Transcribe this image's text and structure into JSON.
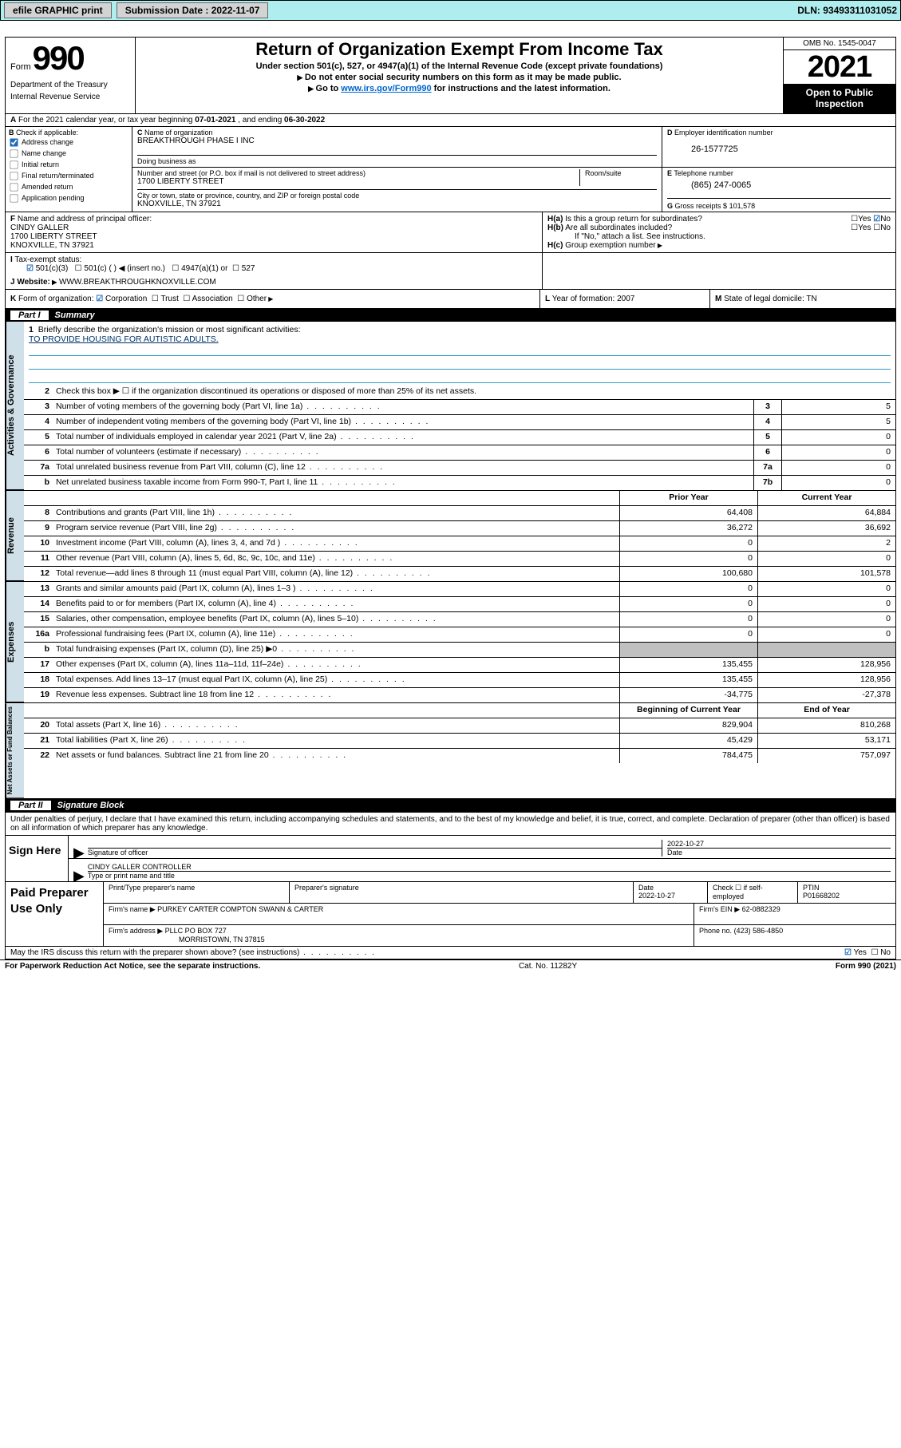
{
  "top": {
    "efile_label": "efile GRAPHIC print",
    "submission_label": "Submission Date : 2022-11-07",
    "dln_label": "DLN: 93493311031052"
  },
  "header": {
    "form_label": "Form",
    "form_number": "990",
    "dept": "Department of the Treasury",
    "irs": "Internal Revenue Service",
    "title": "Return of Organization Exempt From Income Tax",
    "subtitle": "Under section 501(c), 527, or 4947(a)(1) of the Internal Revenue Code (except private foundations)",
    "instr1": "Do not enter social security numbers on this form as it may be made public.",
    "instr2_pre": "Go to ",
    "instr2_link": "www.irs.gov/Form990",
    "instr2_post": " for instructions and the latest information.",
    "omb": "OMB No. 1545-0047",
    "year": "2021",
    "inspection": "Open to Public Inspection"
  },
  "row_a": {
    "label_a": "A",
    "text": "For the 2021 calendar year, or tax year beginning ",
    "begin": "07-01-2021",
    "mid": " , and ending ",
    "end": "06-30-2022"
  },
  "col_b": {
    "label": "B",
    "title": "Check if applicable:",
    "addr_change": "Address change",
    "name_change": "Name change",
    "initial": "Initial return",
    "final": "Final return/terminated",
    "amended": "Amended return",
    "app_pending": "Application pending"
  },
  "col_c": {
    "label": "C",
    "name_label": "Name of organization",
    "name": "BREAKTHROUGH PHASE I INC",
    "dba_label": "Doing business as",
    "dba": "",
    "street_label": "Number and street (or P.O. box if mail is not delivered to street address)",
    "room_label": "Room/suite",
    "street": "1700 LIBERTY STREET",
    "city_label": "City or town, state or province, country, and ZIP or foreign postal code",
    "city": "KNOXVILLE, TN  37921"
  },
  "col_d": {
    "label": "D",
    "title": "Employer identification number",
    "ein": "26-1577725"
  },
  "col_e": {
    "label": "E",
    "title": "Telephone number",
    "phone": "(865) 247-0065"
  },
  "col_g": {
    "label": "G",
    "title": "Gross receipts $",
    "value": "101,578"
  },
  "row_f": {
    "label": "F",
    "title": "Name and address of principal officer:",
    "name": "CINDY GALLER",
    "street": "1700 LIBERTY STREET",
    "city": "KNOXVILLE, TN  37921"
  },
  "row_h": {
    "ha_label": "H(a)",
    "ha_text": "Is this a group return for subordinates?",
    "hb_label": "H(b)",
    "hb_text": "Are all subordinates included?",
    "hb_note": "If \"No,\" attach a list. See instructions.",
    "hc_label": "H(c)",
    "hc_text": "Group exemption number",
    "yes": "Yes",
    "no": "No"
  },
  "row_i": {
    "label": "I",
    "title": "Tax-exempt status:",
    "opt1": "501(c)(3)",
    "opt2": "501(c) (  )",
    "opt2_note": "(insert no.)",
    "opt3": "4947(a)(1) or",
    "opt4": "527"
  },
  "row_j": {
    "label": "J",
    "title": "Website:",
    "url": "WWW.BREAKTHROUGHKNOXVILLE.COM"
  },
  "row_k": {
    "label": "K",
    "title": "Form of organization:",
    "corp": "Corporation",
    "trust": "Trust",
    "assoc": "Association",
    "other": "Other"
  },
  "row_l": {
    "label": "L",
    "title": "Year of formation:",
    "value": "2007"
  },
  "row_m": {
    "label": "M",
    "title": "State of legal domicile:",
    "value": "TN"
  },
  "part1": {
    "label": "Part I",
    "title": "Summary"
  },
  "mission": {
    "num": "1",
    "label": "Briefly describe the organization's mission or most significant activities:",
    "text": "TO PROVIDE HOUSING FOR AUTISTIC ADULTS."
  },
  "line2": {
    "num": "2",
    "text": "Check this box ▶ ☐  if the organization discontinued its operations or disposed of more than 25% of its net assets."
  },
  "governance": {
    "vtab": "Activities & Governance",
    "rows": [
      {
        "n": "3",
        "d": "Number of voting members of the governing body (Part VI, line 1a)",
        "box": "3",
        "v": "5"
      },
      {
        "n": "4",
        "d": "Number of independent voting members of the governing body (Part VI, line 1b)",
        "box": "4",
        "v": "5"
      },
      {
        "n": "5",
        "d": "Total number of individuals employed in calendar year 2021 (Part V, line 2a)",
        "box": "5",
        "v": "0"
      },
      {
        "n": "6",
        "d": "Total number of volunteers (estimate if necessary)",
        "box": "6",
        "v": "0"
      },
      {
        "n": "7a",
        "d": "Total unrelated business revenue from Part VIII, column (C), line 12",
        "box": "7a",
        "v": "0"
      },
      {
        "n": "b",
        "d": "Net unrelated business taxable income from Form 990-T, Part I, line 11",
        "box": "7b",
        "v": "0"
      }
    ]
  },
  "two_col_head": {
    "prior": "Prior Year",
    "current": "Current Year"
  },
  "revenue": {
    "vtab": "Revenue",
    "rows": [
      {
        "n": "8",
        "d": "Contributions and grants (Part VIII, line 1h)",
        "p": "64,408",
        "c": "64,884"
      },
      {
        "n": "9",
        "d": "Program service revenue (Part VIII, line 2g)",
        "p": "36,272",
        "c": "36,692"
      },
      {
        "n": "10",
        "d": "Investment income (Part VIII, column (A), lines 3, 4, and 7d )",
        "p": "0",
        "c": "2"
      },
      {
        "n": "11",
        "d": "Other revenue (Part VIII, column (A), lines 5, 6d, 8c, 9c, 10c, and 11e)",
        "p": "0",
        "c": "0"
      },
      {
        "n": "12",
        "d": "Total revenue—add lines 8 through 11 (must equal Part VIII, column (A), line 12)",
        "p": "100,680",
        "c": "101,578"
      }
    ]
  },
  "expenses": {
    "vtab": "Expenses",
    "rows": [
      {
        "n": "13",
        "d": "Grants and similar amounts paid (Part IX, column (A), lines 1–3 )",
        "p": "0",
        "c": "0"
      },
      {
        "n": "14",
        "d": "Benefits paid to or for members (Part IX, column (A), line 4)",
        "p": "0",
        "c": "0"
      },
      {
        "n": "15",
        "d": "Salaries, other compensation, employee benefits (Part IX, column (A), lines 5–10)",
        "p": "0",
        "c": "0"
      },
      {
        "n": "16a",
        "d": "Professional fundraising fees (Part IX, column (A), line 11e)",
        "p": "0",
        "c": "0"
      },
      {
        "n": "b",
        "d": "Total fundraising expenses (Part IX, column (D), line 25) ▶0",
        "p": "",
        "c": "",
        "shade": true
      },
      {
        "n": "17",
        "d": "Other expenses (Part IX, column (A), lines 11a–11d, 11f–24e)",
        "p": "135,455",
        "c": "128,956"
      },
      {
        "n": "18",
        "d": "Total expenses. Add lines 13–17 (must equal Part IX, column (A), line 25)",
        "p": "135,455",
        "c": "128,956"
      },
      {
        "n": "19",
        "d": "Revenue less expenses. Subtract line 18 from line 12",
        "p": "-34,775",
        "c": "-27,378"
      }
    ]
  },
  "net_head": {
    "begin": "Beginning of Current Year",
    "end": "End of Year"
  },
  "net": {
    "vtab": "Net Assets or Fund Balances",
    "rows": [
      {
        "n": "20",
        "d": "Total assets (Part X, line 16)",
        "p": "829,904",
        "c": "810,268"
      },
      {
        "n": "21",
        "d": "Total liabilities (Part X, line 26)",
        "p": "45,429",
        "c": "53,171"
      },
      {
        "n": "22",
        "d": "Net assets or fund balances. Subtract line 21 from line 20",
        "p": "784,475",
        "c": "757,097"
      }
    ]
  },
  "part2": {
    "label": "Part II",
    "title": "Signature Block"
  },
  "sig": {
    "intro": "Under penalties of perjury, I declare that I have examined this return, including accompanying schedules and statements, and to the best of my knowledge and belief, it is true, correct, and complete. Declaration of preparer (other than officer) is based on all information of which preparer has any knowledge.",
    "sign_here": "Sign Here",
    "sig_officer": "Signature of officer",
    "date_label": "Date",
    "date": "2022-10-27",
    "name_title": "CINDY GALLER  CONTROLLER",
    "type_label": "Type or print name and title"
  },
  "prep": {
    "title": "Paid Preparer Use Only",
    "name_label": "Print/Type preparer's name",
    "sig_label": "Preparer's signature",
    "date_label": "Date",
    "date": "2022-10-27",
    "check_label": "Check ☐ if self-employed",
    "ptin_label": "PTIN",
    "ptin": "P01668202",
    "firm_name_label": "Firm's name    ▶",
    "firm_name": "PURKEY CARTER COMPTON SWANN & CARTER",
    "firm_ein_label": "Firm's EIN ▶",
    "firm_ein": "62-0882329",
    "firm_addr_label": "Firm's address ▶",
    "firm_addr": "PLLC PO BOX 727",
    "firm_city": "MORRISTOWN, TN  37815",
    "phone_label": "Phone no.",
    "phone": "(423) 586-4850"
  },
  "footer": {
    "discuss": "May the IRS discuss this return with the preparer shown above? (see instructions)",
    "yes": "Yes",
    "no": "No",
    "paperwork": "For Paperwork Reduction Act Notice, see the separate instructions.",
    "cat": "Cat. No. 11282Y",
    "form": "Form 990 (2021)"
  }
}
